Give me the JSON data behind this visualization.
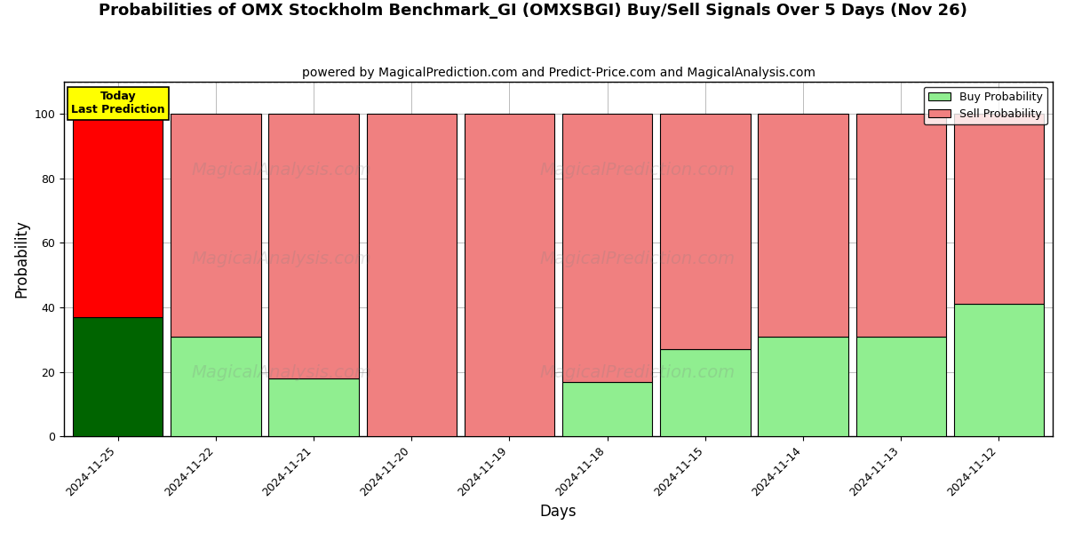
{
  "title": "Probabilities of OMX Stockholm Benchmark_GI (OMXSBGI) Buy/Sell Signals Over 5 Days (Nov 26)",
  "subtitle": "powered by MagicalPrediction.com and Predict-Price.com and MagicalAnalysis.com",
  "xlabel": "Days",
  "ylabel": "Probability",
  "watermark_left": "MagicalAnalysis.com",
  "watermark_right": "MagicalPrediction.com",
  "days": [
    "2024-11-25",
    "2024-11-22",
    "2024-11-21",
    "2024-11-20",
    "2024-11-19",
    "2024-11-18",
    "2024-11-15",
    "2024-11-14",
    "2024-11-13",
    "2024-11-12"
  ],
  "buy_values": [
    37,
    31,
    18,
    0,
    0,
    17,
    27,
    31,
    31,
    41
  ],
  "sell_values": [
    63,
    69,
    82,
    100,
    100,
    83,
    73,
    69,
    69,
    59
  ],
  "today_bar_index": 0,
  "today_buy_color": "#006400",
  "today_sell_color": "#ff0000",
  "other_buy_color": "#90ee90",
  "other_sell_color": "#f08080",
  "bar_edge_color": "#000000",
  "ylim": [
    0,
    110
  ],
  "yticks": [
    0,
    20,
    40,
    60,
    80,
    100
  ],
  "dashed_line_y": 110,
  "grid_color": "#bbbbbb",
  "background_color": "#ffffff",
  "today_label": "Today\nLast Prediction",
  "today_label_bg": "#ffff00",
  "legend_buy_label": "Buy Probability",
  "legend_sell_label": "Sell Probability",
  "title_fontsize": 13,
  "subtitle_fontsize": 10,
  "axis_label_fontsize": 12,
  "tick_fontsize": 9,
  "bar_width": 0.92
}
